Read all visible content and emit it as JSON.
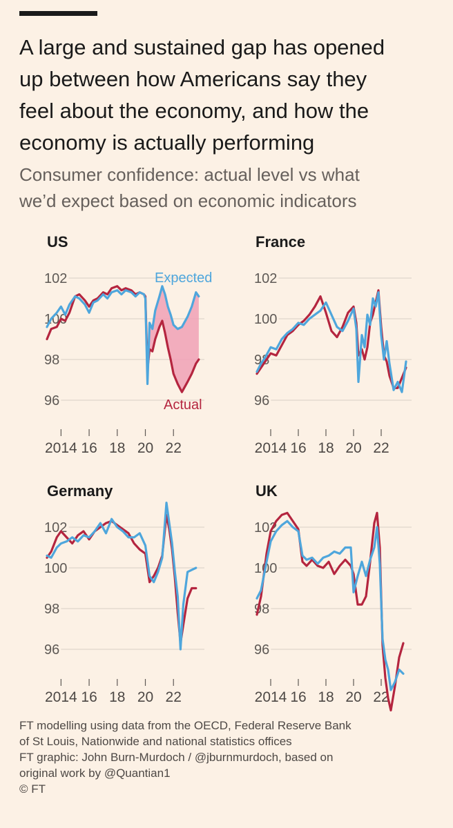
{
  "title": "A large and sustained gap has opened up between how Americans say they feel about the economy, and how the economy is actually performing",
  "title_lines": [
    "A large and sustained gap has opened",
    "up between how Americans say they",
    "feel about the economy, and how the",
    "economy is actually performing"
  ],
  "subtitle_lines": [
    "Consumer confidence: actual level vs what",
    "we’d expect based on economic indicators"
  ],
  "footnote_lines": [
    "FT modelling using data from the OECD, Federal Reserve Bank",
    "of St Louis, Nationwide and national statistics offices",
    "FT graphic: John Burn-Murdoch / @jburnmurdoch, based on",
    "original work by @Quantian1",
    "© FT"
  ],
  "colors": {
    "expected": "#4ea6dc",
    "actual": "#b4253f",
    "gap_fill": "#f0a1b6",
    "grid": "#d9cfc5",
    "background": "#fcf1e5"
  },
  "chart_data": [
    {
      "type": "line",
      "title": "US",
      "x_ticks": [
        2014,
        2016,
        2018,
        2020,
        2022
      ],
      "x_tick_labels": [
        "2014",
        "16",
        "18",
        "20",
        "22"
      ],
      "y_ticks": [
        96,
        98,
        100,
        102
      ],
      "y_tick_labels": [
        "96",
        "98",
        "100",
        "102"
      ],
      "xlim": [
        2013.0,
        2024.2
      ],
      "ylim": [
        95.3,
        102.8
      ],
      "annotations": [
        "Expected",
        "Actual"
      ],
      "gap_shaded": true,
      "series": [
        {
          "name": "Expected",
          "x": [
            2013.0,
            2013.3,
            2013.7,
            2014.0,
            2014.3,
            2014.6,
            2015.0,
            2015.3,
            2015.7,
            2016.0,
            2016.3,
            2016.6,
            2017.0,
            2017.3,
            2017.6,
            2018.0,
            2018.3,
            2018.6,
            2019.0,
            2019.3,
            2019.6,
            2019.9,
            2020.0,
            2020.15,
            2020.3,
            2020.5,
            2020.7,
            2021.0,
            2021.2,
            2021.4,
            2021.6,
            2021.8,
            2022.0,
            2022.3,
            2022.6,
            2023.0,
            2023.3,
            2023.6,
            2023.8
          ],
          "y": [
            99.6,
            100.0,
            100.3,
            100.6,
            100.2,
            100.7,
            101.1,
            101.0,
            100.7,
            100.3,
            100.8,
            100.9,
            101.2,
            101.0,
            101.3,
            101.4,
            101.2,
            101.4,
            101.3,
            101.1,
            101.3,
            101.2,
            101.0,
            96.8,
            99.8,
            99.5,
            100.4,
            101.1,
            101.6,
            101.2,
            100.6,
            100.2,
            99.7,
            99.5,
            99.6,
            100.1,
            100.6,
            101.3,
            101.1
          ]
        },
        {
          "name": "Actual",
          "x": [
            2013.0,
            2013.3,
            2013.7,
            2014.0,
            2014.3,
            2014.6,
            2015.0,
            2015.3,
            2015.7,
            2016.0,
            2016.3,
            2016.6,
            2017.0,
            2017.3,
            2017.6,
            2018.0,
            2018.3,
            2018.6,
            2019.0,
            2019.3,
            2019.6,
            2019.9,
            2020.0,
            2020.15,
            2020.3,
            2020.5,
            2020.7,
            2021.0,
            2021.2,
            2021.4,
            2021.6,
            2021.8,
            2022.0,
            2022.3,
            2022.6,
            2023.0,
            2023.3,
            2023.6,
            2023.8
          ],
          "y": [
            99.0,
            99.5,
            99.6,
            100.0,
            99.9,
            100.3,
            101.1,
            101.2,
            100.9,
            100.6,
            100.9,
            101.0,
            101.3,
            101.2,
            101.5,
            101.6,
            101.4,
            101.5,
            101.4,
            101.2,
            101.3,
            101.2,
            101.1,
            97.5,
            98.5,
            98.4,
            99.0,
            99.6,
            99.9,
            99.3,
            98.6,
            98.0,
            97.3,
            96.8,
            96.4,
            96.9,
            97.3,
            97.8,
            98.0
          ]
        }
      ]
    },
    {
      "type": "line",
      "title": "France",
      "x_ticks": [
        2014,
        2016,
        2018,
        2020,
        2022
      ],
      "x_tick_labels": [
        "2014",
        "16",
        "18",
        "20",
        "22"
      ],
      "y_ticks": [
        96,
        98,
        100,
        102
      ],
      "y_tick_labels": [
        "96",
        "98",
        "100",
        "102"
      ],
      "xlim": [
        2013.0,
        2024.2
      ],
      "ylim": [
        95.3,
        102.8
      ],
      "series": [
        {
          "name": "Expected",
          "x": [
            2013.0,
            2013.3,
            2013.6,
            2014.0,
            2014.4,
            2014.8,
            2015.2,
            2015.6,
            2016.0,
            2016.4,
            2016.8,
            2017.2,
            2017.6,
            2018.0,
            2018.4,
            2018.8,
            2019.2,
            2019.6,
            2020.0,
            2020.2,
            2020.35,
            2020.6,
            2020.8,
            2021.0,
            2021.2,
            2021.4,
            2021.6,
            2021.8,
            2022.0,
            2022.2,
            2022.4,
            2022.6,
            2022.9,
            2023.2,
            2023.5,
            2023.8
          ],
          "y": [
            97.4,
            97.8,
            98.1,
            98.6,
            98.5,
            99.0,
            99.3,
            99.5,
            99.8,
            99.7,
            100.0,
            100.2,
            100.4,
            100.8,
            100.2,
            99.6,
            99.4,
            99.9,
            100.5,
            99.5,
            96.9,
            99.2,
            98.6,
            100.2,
            99.7,
            101.0,
            100.6,
            101.3,
            99.2,
            98.0,
            98.9,
            97.8,
            96.5,
            96.9,
            96.4,
            97.9
          ]
        },
        {
          "name": "Actual",
          "x": [
            2013.0,
            2013.3,
            2013.6,
            2014.0,
            2014.4,
            2014.8,
            2015.2,
            2015.6,
            2016.0,
            2016.4,
            2016.8,
            2017.2,
            2017.6,
            2018.0,
            2018.4,
            2018.8,
            2019.2,
            2019.6,
            2020.0,
            2020.2,
            2020.35,
            2020.6,
            2020.8,
            2021.0,
            2021.2,
            2021.4,
            2021.6,
            2021.8,
            2022.0,
            2022.2,
            2022.4,
            2022.6,
            2022.9,
            2023.2,
            2023.5,
            2023.8
          ],
          "y": [
            97.3,
            97.6,
            97.9,
            98.3,
            98.2,
            98.7,
            99.2,
            99.4,
            99.7,
            99.9,
            100.2,
            100.6,
            101.1,
            100.3,
            99.4,
            99.1,
            99.6,
            100.3,
            100.6,
            99.8,
            98.2,
            98.5,
            98.0,
            98.6,
            99.8,
            100.2,
            100.8,
            101.4,
            99.6,
            98.2,
            97.9,
            97.2,
            96.6,
            96.6,
            97.1,
            97.6
          ]
        }
      ]
    },
    {
      "type": "line",
      "title": "Germany",
      "x_ticks": [
        2014,
        2016,
        2018,
        2020,
        2022
      ],
      "x_tick_labels": [
        "2014",
        "16",
        "18",
        "20",
        "22"
      ],
      "y_ticks": [
        96,
        98,
        100,
        102
      ],
      "y_tick_labels": [
        "96",
        "98",
        "100",
        "102"
      ],
      "xlim": [
        2013.0,
        2024.2
      ],
      "ylim": [
        94.9,
        103.5
      ],
      "series": [
        {
          "name": "Expected",
          "x": [
            2013.0,
            2013.3,
            2013.7,
            2014.0,
            2014.4,
            2014.8,
            2015.2,
            2015.6,
            2016.0,
            2016.4,
            2016.8,
            2017.2,
            2017.6,
            2018.0,
            2018.4,
            2018.8,
            2019.2,
            2019.6,
            2020.0,
            2020.3,
            2020.6,
            2020.9,
            2021.2,
            2021.5,
            2021.7,
            2021.9,
            2022.1,
            2022.3,
            2022.5,
            2022.7,
            2023.0,
            2023.3,
            2023.6
          ],
          "y": [
            100.6,
            100.5,
            101.0,
            101.2,
            101.3,
            101.5,
            101.3,
            101.6,
            101.5,
            101.8,
            102.2,
            101.7,
            102.4,
            102.0,
            101.8,
            101.5,
            101.5,
            101.7,
            101.1,
            99.6,
            99.3,
            99.8,
            100.5,
            103.2,
            102.2,
            101.2,
            99.8,
            98.6,
            96.0,
            98.2,
            99.8,
            99.9,
            100.0
          ]
        },
        {
          "name": "Actual",
          "x": [
            2013.0,
            2013.3,
            2013.7,
            2014.0,
            2014.4,
            2014.8,
            2015.2,
            2015.6,
            2016.0,
            2016.4,
            2016.8,
            2017.2,
            2017.6,
            2018.0,
            2018.4,
            2018.8,
            2019.2,
            2019.6,
            2020.0,
            2020.3,
            2020.6,
            2020.9,
            2021.2,
            2021.5,
            2021.7,
            2021.9,
            2022.1,
            2022.3,
            2022.5,
            2022.7,
            2023.0,
            2023.3,
            2023.6
          ],
          "y": [
            100.5,
            100.8,
            101.5,
            101.8,
            101.5,
            101.2,
            101.6,
            101.8,
            101.4,
            101.8,
            102.0,
            102.2,
            102.3,
            102.1,
            101.9,
            101.7,
            101.2,
            100.9,
            100.7,
            99.3,
            99.6,
            100.0,
            100.6,
            102.6,
            101.9,
            100.9,
            99.5,
            97.8,
            96.3,
            97.2,
            98.5,
            99.0,
            99.0
          ]
        }
      ]
    },
    {
      "type": "line",
      "title": "UK",
      "x_ticks": [
        2014,
        2016,
        2018,
        2020,
        2022
      ],
      "x_tick_labels": [
        "2014",
        "16",
        "18",
        "20",
        "22"
      ],
      "y_ticks": [
        96,
        98,
        100,
        102
      ],
      "y_tick_labels": [
        "96",
        "98",
        "100",
        "102"
      ],
      "xlim": [
        2013.0,
        2024.2
      ],
      "ylim": [
        94.9,
        103.5
      ],
      "series": [
        {
          "name": "Expected",
          "x": [
            2013.0,
            2013.3,
            2013.7,
            2014.0,
            2014.4,
            2014.8,
            2015.2,
            2015.6,
            2016.0,
            2016.3,
            2016.6,
            2017.0,
            2017.4,
            2017.8,
            2018.2,
            2018.6,
            2019.0,
            2019.4,
            2019.8,
            2020.0,
            2020.3,
            2020.6,
            2020.9,
            2021.2,
            2021.5,
            2021.7,
            2021.9,
            2022.1,
            2022.3,
            2022.5,
            2022.7,
            2023.0,
            2023.3,
            2023.6
          ],
          "y": [
            98.5,
            98.9,
            100.3,
            101.3,
            101.8,
            102.1,
            102.3,
            102.0,
            101.8,
            100.6,
            100.4,
            100.5,
            100.2,
            100.5,
            100.6,
            100.8,
            100.7,
            101.0,
            101.0,
            98.8,
            99.6,
            100.3,
            99.6,
            100.4,
            101.0,
            102.0,
            100.2,
            96.5,
            95.5,
            95.0,
            94.0,
            94.4,
            95.0,
            94.8
          ]
        },
        {
          "name": "Actual",
          "x": [
            2013.0,
            2013.3,
            2013.7,
            2014.0,
            2014.4,
            2014.8,
            2015.2,
            2015.6,
            2016.0,
            2016.3,
            2016.6,
            2017.0,
            2017.4,
            2017.8,
            2018.2,
            2018.6,
            2019.0,
            2019.4,
            2019.8,
            2020.0,
            2020.3,
            2020.6,
            2020.9,
            2021.2,
            2021.5,
            2021.7,
            2021.9,
            2022.1,
            2022.3,
            2022.5,
            2022.7,
            2023.0,
            2023.3,
            2023.6
          ],
          "y": [
            97.7,
            98.6,
            100.7,
            101.8,
            102.3,
            102.6,
            102.7,
            102.3,
            101.9,
            100.3,
            100.1,
            100.4,
            100.1,
            100.0,
            100.3,
            99.7,
            100.1,
            100.4,
            100.1,
            99.7,
            98.2,
            98.2,
            98.6,
            100.3,
            102.2,
            102.7,
            101.0,
            96.2,
            94.6,
            93.6,
            93.0,
            94.2,
            95.6,
            96.3
          ]
        }
      ]
    }
  ]
}
